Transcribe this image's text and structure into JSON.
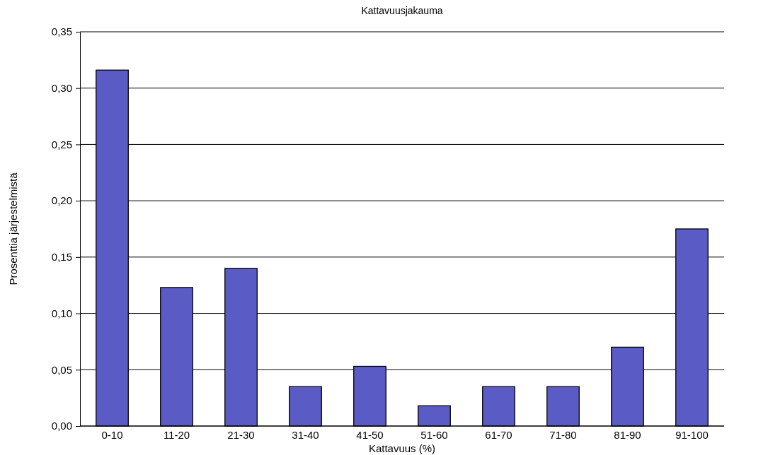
{
  "chart_data": {
    "type": "bar",
    "title": "Kattavuusjakauma",
    "xlabel": "Kattavuus (%)",
    "ylabel": "Prosenttia järjestelmistä",
    "categories": [
      "0-10",
      "11-20",
      "21-30",
      "31-40",
      "41-50",
      "51-60",
      "61-70",
      "71-80",
      "81-90",
      "91-100"
    ],
    "values": [
      0.316,
      0.123,
      0.14,
      0.035,
      0.053,
      0.018,
      0.035,
      0.035,
      0.07,
      0.175
    ],
    "color": "#5b5bc6",
    "ylim": [
      0,
      0.35
    ],
    "yticks": [
      {
        "value": 0,
        "label": "0,00"
      },
      {
        "value": 0.05,
        "label": "0,05"
      },
      {
        "value": 0.1,
        "label": "0,10"
      },
      {
        "value": 0.15,
        "label": "0,15"
      },
      {
        "value": 0.2,
        "label": "0,20"
      },
      {
        "value": 0.25,
        "label": "0,25"
      },
      {
        "value": 0.3,
        "label": "0,30"
      },
      {
        "value": 0.35,
        "label": "0,35"
      }
    ],
    "grid": "y"
  }
}
